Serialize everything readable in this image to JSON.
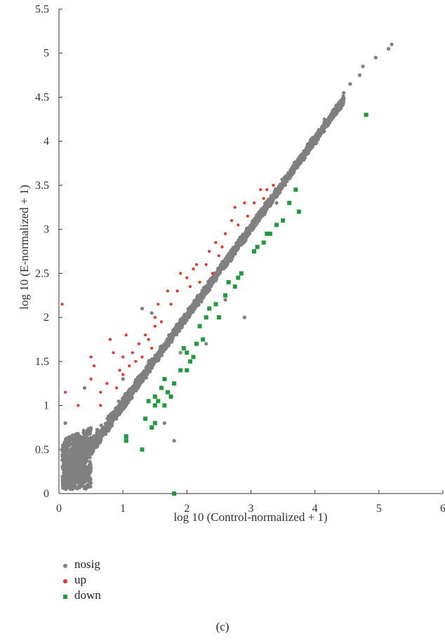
{
  "chart_data": {
    "type": "scatter",
    "xlabel": "log 10 (Control-normalized + 1)",
    "ylabel": "log 10 (E-normalized + 1)",
    "xlim": [
      0,
      6
    ],
    "ylim": [
      0,
      5.5
    ],
    "x_ticks": [
      "0",
      "1",
      "2",
      "3",
      "4",
      "5",
      "6"
    ],
    "y_ticks": [
      "0",
      "0.5",
      "1",
      "1.5",
      "2",
      "2.5",
      "3",
      "3.5",
      "4",
      "4.5",
      "5",
      "5.5"
    ],
    "legend_position": "bottom-left",
    "series": [
      {
        "name": "nosig",
        "marker": "circle",
        "color": "#808080",
        "points": [
          [
            4.7,
            4.75
          ],
          [
            4.95,
            4.95
          ],
          [
            5.15,
            5.05
          ],
          [
            5.2,
            5.1
          ],
          [
            4.75,
            4.85
          ],
          [
            4.55,
            4.65
          ],
          [
            4.45,
            4.55
          ],
          [
            4.3,
            4.35
          ],
          [
            4.15,
            4.25
          ],
          [
            1.3,
            2.1
          ],
          [
            1.45,
            2.05
          ],
          [
            2.9,
            2.0
          ],
          [
            1.8,
            0.6
          ],
          [
            2.3,
            1.7
          ],
          [
            1.65,
            0.8
          ],
          [
            0.1,
            0.8
          ],
          [
            0.4,
            1.2
          ],
          [
            0.05,
            0.5
          ],
          [
            2.6,
            2.2
          ],
          [
            3.4,
            3.3
          ],
          [
            1.0,
            1.3
          ],
          [
            1.9,
            1.6
          ]
        ]
      },
      {
        "name": "up",
        "marker": "circle",
        "color": "#e8332a",
        "points": [
          [
            0.05,
            2.15
          ],
          [
            0.1,
            1.15
          ],
          [
            0.5,
            1.3
          ],
          [
            0.55,
            1.45
          ],
          [
            0.5,
            1.55
          ],
          [
            0.8,
            1.75
          ],
          [
            0.85,
            1.6
          ],
          [
            1.05,
            1.8
          ],
          [
            1.0,
            1.55
          ],
          [
            1.1,
            1.45
          ],
          [
            1.25,
            1.7
          ],
          [
            1.35,
            1.8
          ],
          [
            1.5,
            2.0
          ],
          [
            1.5,
            1.9
          ],
          [
            1.55,
            2.15
          ],
          [
            1.7,
            2.3
          ],
          [
            1.9,
            2.5
          ],
          [
            2.0,
            2.45
          ],
          [
            2.1,
            2.55
          ],
          [
            2.15,
            2.6
          ],
          [
            2.35,
            2.75
          ],
          [
            2.45,
            2.85
          ],
          [
            2.6,
            2.95
          ],
          [
            2.7,
            3.1
          ],
          [
            2.75,
            3.25
          ],
          [
            2.9,
            3.3
          ],
          [
            3.05,
            3.3
          ],
          [
            3.15,
            3.45
          ],
          [
            3.25,
            3.45
          ],
          [
            3.35,
            3.5
          ],
          [
            0.3,
            1.0
          ],
          [
            0.65,
            1.15
          ],
          [
            0.75,
            1.25
          ],
          [
            0.9,
            1.2
          ],
          [
            1.0,
            1.35
          ],
          [
            1.15,
            1.6
          ],
          [
            1.2,
            1.5
          ],
          [
            1.4,
            1.75
          ],
          [
            1.6,
            1.95
          ],
          [
            1.75,
            2.15
          ],
          [
            1.85,
            2.3
          ],
          [
            2.2,
            2.4
          ],
          [
            2.3,
            2.6
          ],
          [
            2.5,
            2.7
          ],
          [
            2.55,
            2.8
          ],
          [
            2.8,
            3.05
          ],
          [
            2.95,
            3.15
          ],
          [
            3.2,
            3.35
          ],
          [
            0.65,
            1.0
          ],
          [
            0.95,
            1.4
          ],
          [
            1.3,
            1.55
          ],
          [
            1.45,
            1.65
          ],
          [
            2.05,
            2.35
          ],
          [
            2.4,
            2.5
          ]
        ]
      },
      {
        "name": "down",
        "marker": "square",
        "color": "#1f9a3e",
        "points": [
          [
            1.8,
            0.0
          ],
          [
            1.3,
            0.5
          ],
          [
            1.05,
            0.6
          ],
          [
            1.05,
            0.65
          ],
          [
            1.45,
            0.75
          ],
          [
            1.5,
            0.8
          ],
          [
            1.35,
            0.85
          ],
          [
            1.5,
            1.0
          ],
          [
            1.65,
            1.0
          ],
          [
            1.55,
            1.05
          ],
          [
            1.5,
            1.1
          ],
          [
            1.7,
            1.15
          ],
          [
            1.65,
            1.3
          ],
          [
            1.8,
            1.25
          ],
          [
            1.9,
            1.4
          ],
          [
            2.0,
            1.4
          ],
          [
            2.05,
            1.5
          ],
          [
            2.1,
            1.55
          ],
          [
            2.15,
            1.7
          ],
          [
            2.25,
            1.75
          ],
          [
            2.2,
            1.9
          ],
          [
            2.3,
            2.0
          ],
          [
            2.35,
            2.1
          ],
          [
            2.5,
            2.0
          ],
          [
            2.6,
            2.25
          ],
          [
            2.75,
            2.35
          ],
          [
            2.8,
            2.45
          ],
          [
            2.85,
            2.5
          ],
          [
            3.05,
            2.75
          ],
          [
            3.1,
            2.8
          ],
          [
            3.2,
            2.85
          ],
          [
            3.25,
            2.95
          ],
          [
            3.4,
            3.05
          ],
          [
            3.5,
            3.1
          ],
          [
            3.6,
            3.3
          ],
          [
            3.7,
            3.45
          ],
          [
            3.75,
            3.2
          ],
          [
            4.8,
            4.3
          ],
          [
            1.95,
            1.65
          ],
          [
            2.45,
            2.15
          ],
          [
            2.65,
            2.4
          ],
          [
            3.3,
            2.95
          ],
          [
            1.75,
            1.1
          ],
          [
            1.6,
            1.2
          ],
          [
            1.4,
            1.05
          ],
          [
            2.0,
            1.6
          ]
        ]
      }
    ]
  },
  "caption": "(c)"
}
